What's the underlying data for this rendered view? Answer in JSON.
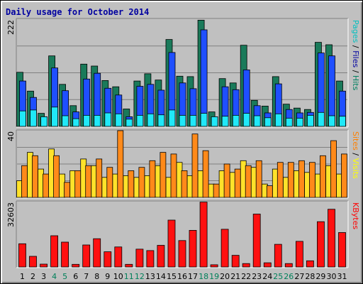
{
  "chart_data": {
    "type": "bar",
    "title": "Daily usage for October 2014",
    "categories": [
      "1",
      "2",
      "3",
      "4",
      "5",
      "6",
      "7",
      "8",
      "9",
      "10",
      "11",
      "12",
      "13",
      "14",
      "15",
      "16",
      "17",
      "18",
      "19",
      "20",
      "21",
      "22",
      "23",
      "24",
      "25",
      "26",
      "27",
      "28",
      "29",
      "30",
      "31"
    ],
    "weekend_days": [
      4,
      5,
      11,
      12,
      18,
      19,
      25,
      26
    ],
    "panels": [
      {
        "id": "hits",
        "max_label": "222",
        "ylim": [
          0,
          222
        ],
        "grid": true,
        "right_label": [
          {
            "text": "Pages",
            "color": "#00c0c0"
          },
          {
            "text": " / ",
            "color": "#000000"
          },
          {
            "text": "Files",
            "color": "#0000a0"
          },
          {
            "text": " / ",
            "color": "#000000"
          },
          {
            "text": "Hits",
            "color": "#008060"
          }
        ],
        "series": [
          {
            "name": "Hits",
            "color": "#1a7a5a",
            "values": [
              112,
              73,
              27,
              146,
              87,
              43,
              129,
              125,
              95,
              82,
              36,
              94,
              109,
              96,
              180,
              104,
              103,
              220,
              30,
              99,
              90,
              168,
              54,
              42,
              103,
              46,
              38,
              35,
              174,
              169,
              94
            ]
          },
          {
            "name": "Files",
            "color": "#1f4fff",
            "values": [
              94,
              60,
              16,
              121,
              74,
              30,
              98,
              110,
              79,
              65,
              20,
              83,
              87,
              75,
              153,
              90,
              78,
              200,
              19,
              82,
              76,
              117,
              43,
              28,
              88,
              35,
              28,
              29,
              152,
              146,
              73
            ]
          },
          {
            "name": "Pages",
            "color": "#20e8f8",
            "values": [
              32,
              34,
              20,
              40,
              22,
              16,
              23,
              23,
              28,
              26,
              15,
              23,
              26,
              24,
              34,
              23,
              23,
              27,
              20,
              21,
              23,
              27,
              22,
              18,
              26,
              17,
              17,
              23,
              29,
              22,
              21
            ]
          }
        ]
      },
      {
        "id": "visits",
        "max_label": "40",
        "ylim": [
          0,
          40
        ],
        "grid": true,
        "right_label": [
          {
            "text": "Sites",
            "color": "#ff8000"
          },
          {
            "text": " / ",
            "color": "#000000"
          },
          {
            "text": "Visits",
            "color": "#ffff00"
          }
        ],
        "series": [
          {
            "name": "Visits",
            "color": "#ffe22a",
            "values": [
              10,
              27,
              17,
              29,
              14,
              16,
              23,
              19,
              12,
              14,
              13,
              12,
              13,
              19,
              12,
              21,
              13,
              16,
              8,
              16,
              15,
              22,
              18,
              8,
              17,
              12,
              16,
              15,
              14,
              19,
              14
            ]
          },
          {
            "name": "Sites",
            "color": "#ff8a1a",
            "values": [
              19,
              25,
              14,
              25,
              9,
              16,
              19,
              23,
              18,
              40,
              16,
              18,
              22,
              27,
              26,
              16,
              38,
              28,
              8,
              20,
              17,
              19,
              22,
              7,
              21,
              21,
              22,
              21,
              25,
              34,
              26
            ]
          }
        ]
      },
      {
        "id": "kbytes",
        "max_label": "32603",
        "ylim": [
          0,
          32603
        ],
        "grid": false,
        "right_label": [
          {
            "text": "KBytes",
            "color": "#ff0000"
          }
        ],
        "series": [
          {
            "name": "KBytes",
            "color": "#ff1010",
            "values": [
              11600,
              5300,
              1400,
              15600,
              12400,
              1300,
              11000,
              14100,
              7600,
              10000,
              1300,
              8900,
              8200,
              10800,
              23400,
              13200,
              18300,
              32400,
              1100,
              18800,
              5800,
              1700,
              26400,
              2100,
              11300,
              1700,
              12800,
              3100,
              22600,
              28800,
              17200
            ]
          }
        ]
      }
    ]
  }
}
